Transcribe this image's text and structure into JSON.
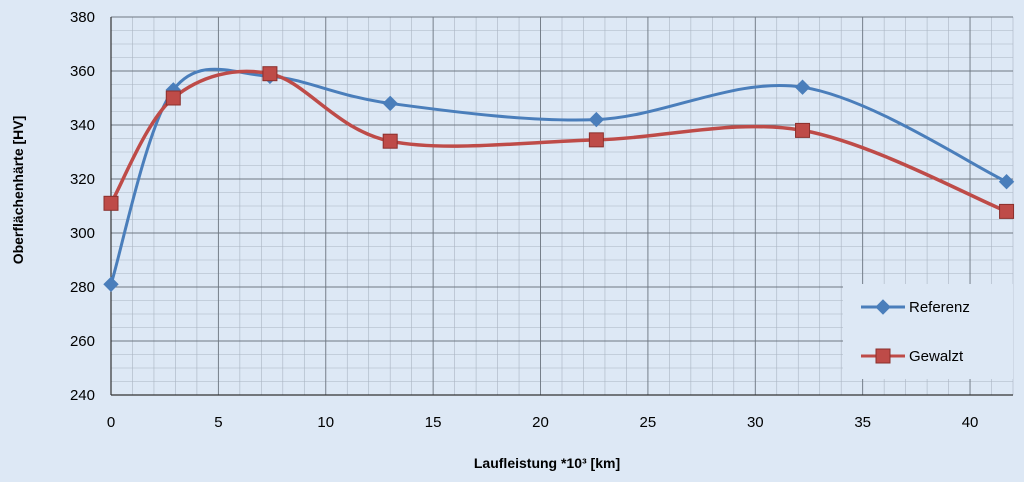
{
  "chart_data": {
    "type": "line",
    "xlabel": "Laufleistung *10³ [km]",
    "ylabel": "Oberflächenhärte [HV]",
    "xlim": [
      0,
      42
    ],
    "ylim": [
      240,
      380
    ],
    "x_ticks": [
      0,
      5,
      10,
      15,
      20,
      25,
      30,
      35,
      40
    ],
    "y_ticks": [
      240,
      260,
      280,
      300,
      320,
      340,
      360,
      380
    ],
    "grid": true,
    "legend_position": "bottom-right",
    "series": [
      {
        "name": "Referenz",
        "color": "#4a7ebb",
        "marker": "diamond",
        "x": [
          0,
          2.9,
          7.4,
          13,
          22.6,
          32.2,
          41.7
        ],
        "y": [
          281,
          353,
          358,
          348,
          342,
          354,
          319
        ]
      },
      {
        "name": "Gewalzt",
        "color": "#be4b48",
        "marker": "square",
        "x": [
          0,
          2.9,
          7.4,
          13,
          22.6,
          32.2,
          41.7
        ],
        "y": [
          311,
          350,
          359,
          334,
          334.5,
          338,
          308
        ]
      }
    ]
  }
}
